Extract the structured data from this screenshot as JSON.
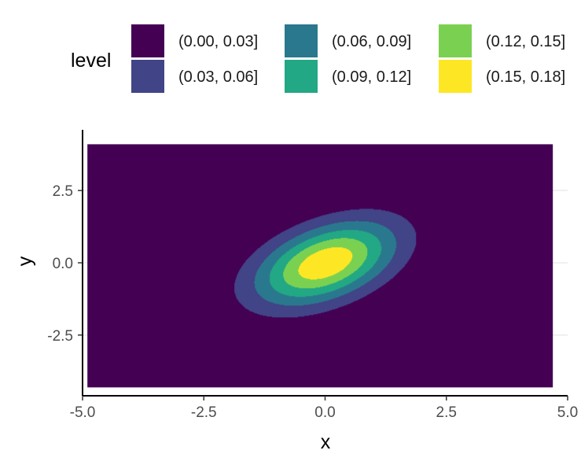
{
  "chart_data": {
    "type": "filled-contour",
    "title": "",
    "xlabel": "x",
    "ylabel": "y",
    "xlim": [
      -5.0,
      5.0
    ],
    "ylim": [
      -4.6,
      4.6
    ],
    "x_ticks": [
      -5.0,
      -2.5,
      0.0,
      2.5,
      5.0
    ],
    "x_tick_labels": [
      "-5.0",
      "-2.5",
      "0.0",
      "2.5",
      "5.0"
    ],
    "y_ticks": [
      -2.5,
      0.0,
      2.5
    ],
    "y_tick_labels": [
      "-2.5",
      "0.0",
      "2.5"
    ],
    "data_extent": {
      "x": [
        -4.9,
        4.7
      ],
      "y": [
        -4.3,
        4.1
      ]
    },
    "legend": {
      "title": "level",
      "position": "top",
      "entries": [
        {
          "label": "(0.00, 0.03]",
          "color": "#440154"
        },
        {
          "label": "(0.03, 0.06]",
          "color": "#414487"
        },
        {
          "label": "(0.06, 0.09]",
          "color": "#2A788E"
        },
        {
          "label": "(0.09, 0.12]",
          "color": "#22A884"
        },
        {
          "label": "(0.12, 0.15]",
          "color": "#7AD151"
        },
        {
          "label": "(0.15, 0.18]",
          "color": "#FDE725"
        }
      ]
    },
    "density": {
      "peak": 0.175,
      "center": [
        0.0,
        0.0
      ],
      "sd_x": 1.0,
      "sd_y": 1.0,
      "correlation": 0.45
    }
  }
}
